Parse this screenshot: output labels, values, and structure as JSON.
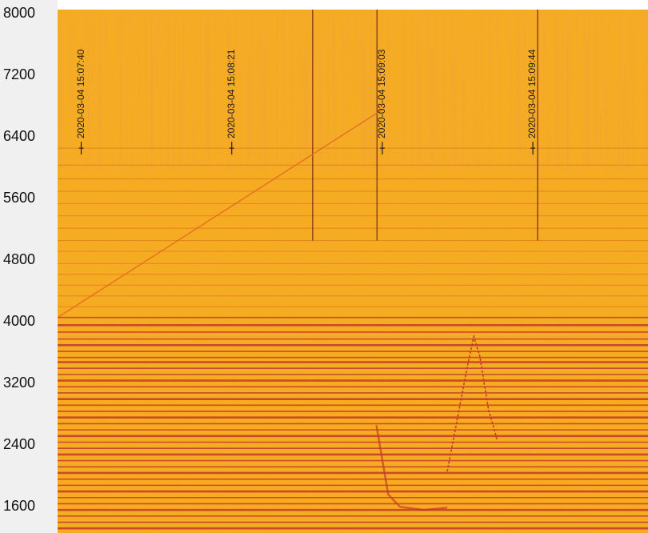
{
  "chart_data": {
    "type": "heatmap",
    "title": "",
    "xlabel": "",
    "ylabel": "",
    "ylim": [
      1200,
      8000
    ],
    "y_ticks": [
      8000,
      7200,
      6400,
      5600,
      4800,
      4000,
      3200,
      2400,
      1600
    ],
    "colormap": [
      "#f8b81c",
      "#f29a1f",
      "#e06a22",
      "#c23a2a"
    ],
    "background_color": "#f6ad1d",
    "time_markers": [
      {
        "label": "2020-03-04 15:07:40",
        "x": 0.04
      },
      {
        "label": "2020-03-04 15:08:21",
        "x": 0.295
      },
      {
        "label": "2020-03-04 15:09:03",
        "x": 0.55
      },
      {
        "label": "2020-03-04 15:09:44",
        "x": 0.805
      }
    ],
    "dark_vertical_lines_x": [
      0.432,
      0.541,
      0.813
    ],
    "horizontal_bands_y": [
      6200,
      5980,
      5800,
      5640,
      5480,
      5320,
      5160,
      5000,
      4860,
      4700,
      4560,
      4420,
      4280,
      4140,
      4000,
      3900,
      3810,
      3720,
      3640,
      3560,
      3480,
      3420,
      3340,
      3260,
      3180,
      3100,
      3020,
      2940,
      2860,
      2780,
      2700,
      2620,
      2540,
      2460,
      2380,
      2300,
      2220,
      2140,
      2060,
      1980,
      1900,
      1820,
      1740,
      1660,
      1580,
      1500,
      1420,
      1340,
      1260
    ],
    "diagonal_sweep": {
      "from": [
        0.0,
        4000
      ],
      "to": [
        0.55,
        6700
      ]
    },
    "spike_trace": [
      {
        "x": 0.66,
        "y": 2000
      },
      {
        "x": 0.68,
        "y": 2800
      },
      {
        "x": 0.695,
        "y": 3400
      },
      {
        "x": 0.705,
        "y": 3750
      },
      {
        "x": 0.715,
        "y": 3500
      },
      {
        "x": 0.73,
        "y": 2800
      },
      {
        "x": 0.745,
        "y": 2400
      }
    ],
    "low_trace": [
      {
        "x": 0.54,
        "y": 2600
      },
      {
        "x": 0.56,
        "y": 1700
      },
      {
        "x": 0.58,
        "y": 1540
      },
      {
        "x": 0.62,
        "y": 1500
      },
      {
        "x": 0.66,
        "y": 1530
      }
    ]
  }
}
